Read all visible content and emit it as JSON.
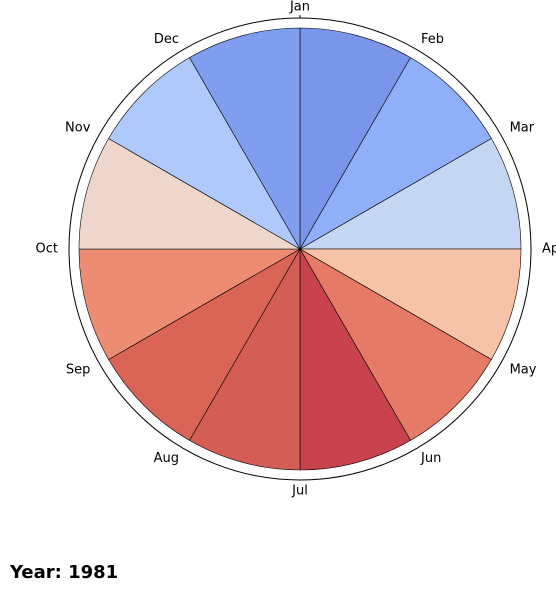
{
  "chart_data": {
    "type": "pie",
    "categories": [
      "Jan",
      "Feb",
      "Mar",
      "Apr",
      "May",
      "Jun",
      "Jul",
      "Aug",
      "Sep",
      "Oct",
      "Nov",
      "Dec"
    ],
    "values": [
      1,
      1,
      1,
      1,
      1,
      1,
      1,
      1,
      1,
      1,
      1,
      1
    ],
    "colors": [
      "#7a96ea",
      "#8fb0f9",
      "#c5d6f2",
      "#f6c2a8",
      "#e57b66",
      "#c8434b",
      "#d45e55",
      "#da6557",
      "#ec8c73",
      "#efd6cc",
      "#afc9fd",
      "#7f9ef0"
    ],
    "title": "Year: 1981",
    "grid": false,
    "legend": "none"
  }
}
